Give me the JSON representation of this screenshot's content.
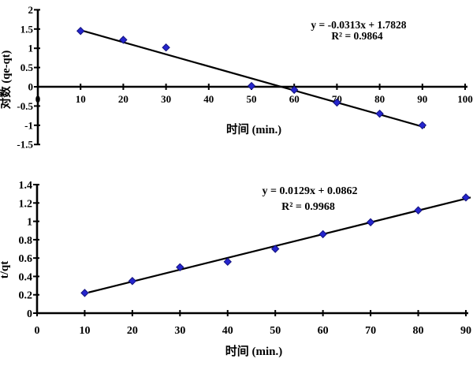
{
  "page": {
    "background": "#ffffff"
  },
  "colors": {
    "marker_fill": "#2525CE",
    "marker_edge": "#12127E",
    "trendline": "#000000",
    "axis": "#000000",
    "text": "#000000"
  },
  "chart_data": [
    {
      "type": "scatter",
      "title": "",
      "xlabel": "时间 (min.)",
      "ylabel": "对数 (qe-qt)",
      "x": [
        10,
        20,
        30,
        50,
        60,
        70,
        80,
        90
      ],
      "y": [
        1.45,
        1.22,
        1.02,
        0.02,
        -0.08,
        -0.41,
        -0.7,
        -1.0
      ],
      "xlim": [
        0,
        100
      ],
      "ylim": [
        -1.5,
        2
      ],
      "xticks": {
        "values": [
          0,
          10,
          20,
          30,
          40,
          50,
          60,
          70,
          80,
          90,
          100
        ],
        "labels": [
          "0",
          "10",
          "20",
          "30",
          "40",
          "50",
          "60",
          "70",
          "80",
          "90",
          "100"
        ]
      },
      "yticks": {
        "values": [
          -1.5,
          -1,
          -0.5,
          0,
          0.5,
          1,
          1.5,
          2
        ],
        "labels": [
          "-1.5",
          "-1",
          "-0.5",
          "0",
          "0.5",
          "1",
          "1.5",
          "2"
        ]
      },
      "trendline": {
        "slope": -0.0313,
        "intercept": 1.7828
      },
      "equation": "y = -0.0313x + 1.7828",
      "r_squared": "R² = 0.9864",
      "marker": "diamond",
      "grid": false,
      "legend": "none"
    },
    {
      "type": "scatter",
      "title": "",
      "xlabel": "时间 (min.)",
      "ylabel": "t/qt",
      "x": [
        10,
        20,
        30,
        40,
        50,
        60,
        70,
        80,
        90
      ],
      "y": [
        0.22,
        0.35,
        0.5,
        0.56,
        0.7,
        0.86,
        0.99,
        1.12,
        1.26
      ],
      "xlim": [
        0,
        90
      ],
      "ylim": [
        0,
        1.4
      ],
      "xticks": {
        "values": [
          0,
          10,
          20,
          30,
          40,
          50,
          60,
          70,
          80,
          90
        ],
        "labels": [
          "0",
          "10",
          "20",
          "30",
          "40",
          "50",
          "60",
          "70",
          "80",
          "90"
        ]
      },
      "yticks": {
        "values": [
          0,
          0.2,
          0.4,
          0.6,
          0.8,
          1,
          1.2,
          1.4
        ],
        "labels": [
          "0",
          "0.2",
          "0.4",
          "0.6",
          "0.8",
          "1",
          "1.2",
          "1.4"
        ]
      },
      "trendline": {
        "slope": 0.0129,
        "intercept": 0.0862
      },
      "equation": "y = 0.0129x + 0.0862",
      "r_squared": "R² = 0.9968",
      "marker": "diamond",
      "grid": false,
      "legend": "none"
    }
  ]
}
